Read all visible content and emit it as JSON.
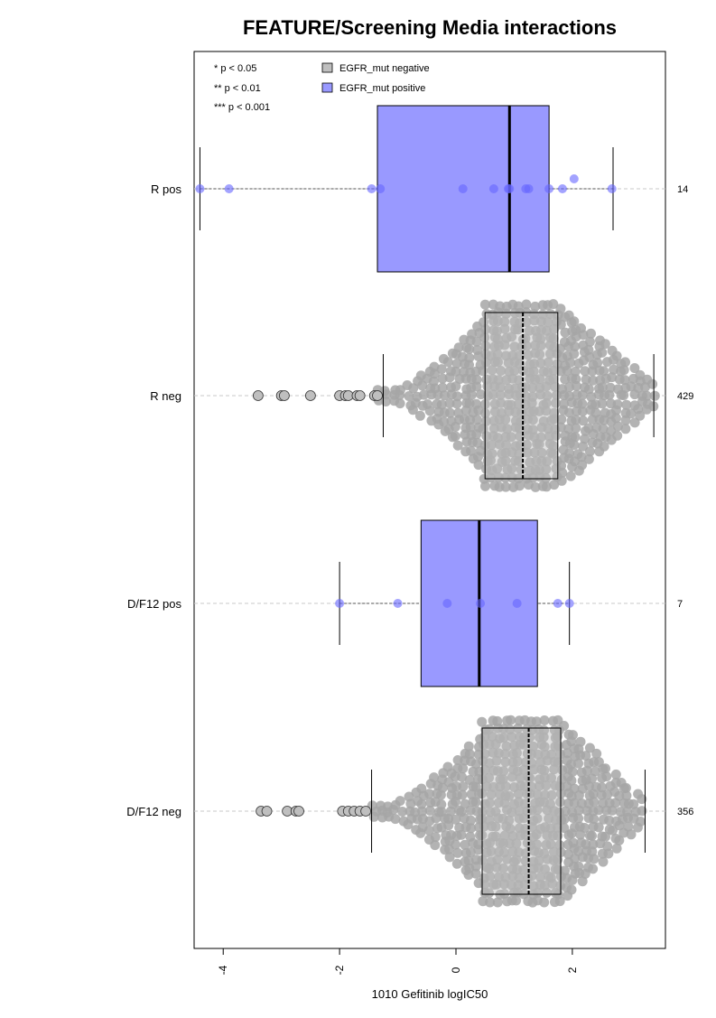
{
  "chart_data": {
    "type": "boxplot",
    "orientation": "horizontal",
    "title": "FEATURE/Screening Media interactions",
    "xlabel": "1010 Gefitinib logIC50",
    "xlim": [
      -4.5,
      3.6
    ],
    "x_ticks": [
      -4,
      -2,
      0,
      2
    ],
    "x_tick_labels": [
      "-4",
      "-2",
      "0",
      "2"
    ],
    "grid": false,
    "significance_legend": [
      "* p < 0.05",
      "** p < 0.01",
      "*** p < 0.001"
    ],
    "legend": [
      {
        "label": "EGFR_mut negative",
        "color": "#bfbfbf"
      },
      {
        "label": "EGFR_mut positive",
        "color": "#9999ff"
      }
    ],
    "colors": {
      "negative_box": "#bfbfbf",
      "negative_point": "#a6a6a6",
      "positive_box": "#9999ff",
      "positive_point": "#6666ff",
      "outline": "#000000",
      "grid_line": "#c8c8c8"
    },
    "groups": [
      {
        "label": "R pos",
        "n": "14",
        "egfr_mut": "positive",
        "min": -4.4,
        "q1": -1.35,
        "median": 0.92,
        "q3": 1.6,
        "max": 2.7,
        "points": [
          -4.4,
          -3.9,
          -1.45,
          -1.3,
          0.12,
          0.65,
          0.9,
          0.92,
          1.2,
          1.25,
          1.6,
          1.83,
          2.03,
          2.68
        ]
      },
      {
        "label": "R neg",
        "n": "429",
        "egfr_mut": "negative",
        "min": -1.25,
        "q1": 0.5,
        "median": 1.15,
        "q3": 1.75,
        "max": 3.4,
        "outliers": [
          -3.4,
          -3.0,
          -2.95,
          -2.5,
          -2.0,
          -1.9,
          -1.85,
          -1.7,
          -1.65,
          -1.4,
          -1.35
        ],
        "spread_min": -1.3,
        "spread_max": 3.4
      },
      {
        "label": "D/F12 pos",
        "n": "7",
        "egfr_mut": "positive",
        "min": -2.0,
        "q1": -0.6,
        "median": 0.4,
        "q3": 1.4,
        "max": 1.95,
        "points": [
          -2.0,
          -1.0,
          -0.15,
          0.42,
          1.05,
          1.75,
          1.95
        ]
      },
      {
        "label": "D/F12 neg",
        "n": "356",
        "egfr_mut": "negative",
        "min": -1.45,
        "q1": 0.45,
        "median": 1.25,
        "q3": 1.8,
        "max": 3.25,
        "outliers": [
          -3.35,
          -3.25,
          -2.9,
          -2.75,
          -2.7,
          -1.95,
          -1.85,
          -1.75,
          -1.65,
          -1.55
        ],
        "spread_min": -1.4,
        "spread_max": 3.2
      }
    ]
  }
}
